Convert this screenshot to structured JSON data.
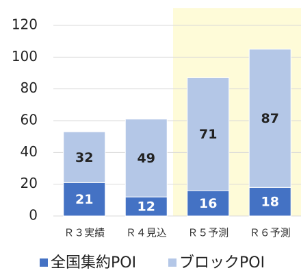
{
  "chart_data": {
    "type": "stacked_bar",
    "categories": [
      "Ｒ３実績",
      "Ｒ４見込",
      "Ｒ５予測",
      "Ｒ６予測"
    ],
    "series": [
      {
        "name": "全国集約POI",
        "color": "#4472c4",
        "values": [
          21,
          12,
          16,
          18
        ]
      },
      {
        "name": "ブロックPOI",
        "color": "#b4c7e7",
        "values": [
          32,
          49,
          71,
          87
        ]
      }
    ],
    "ylim": [
      0,
      120
    ],
    "yticks": [
      0,
      20,
      40,
      60,
      80,
      100,
      120
    ],
    "grid": true
  }
}
